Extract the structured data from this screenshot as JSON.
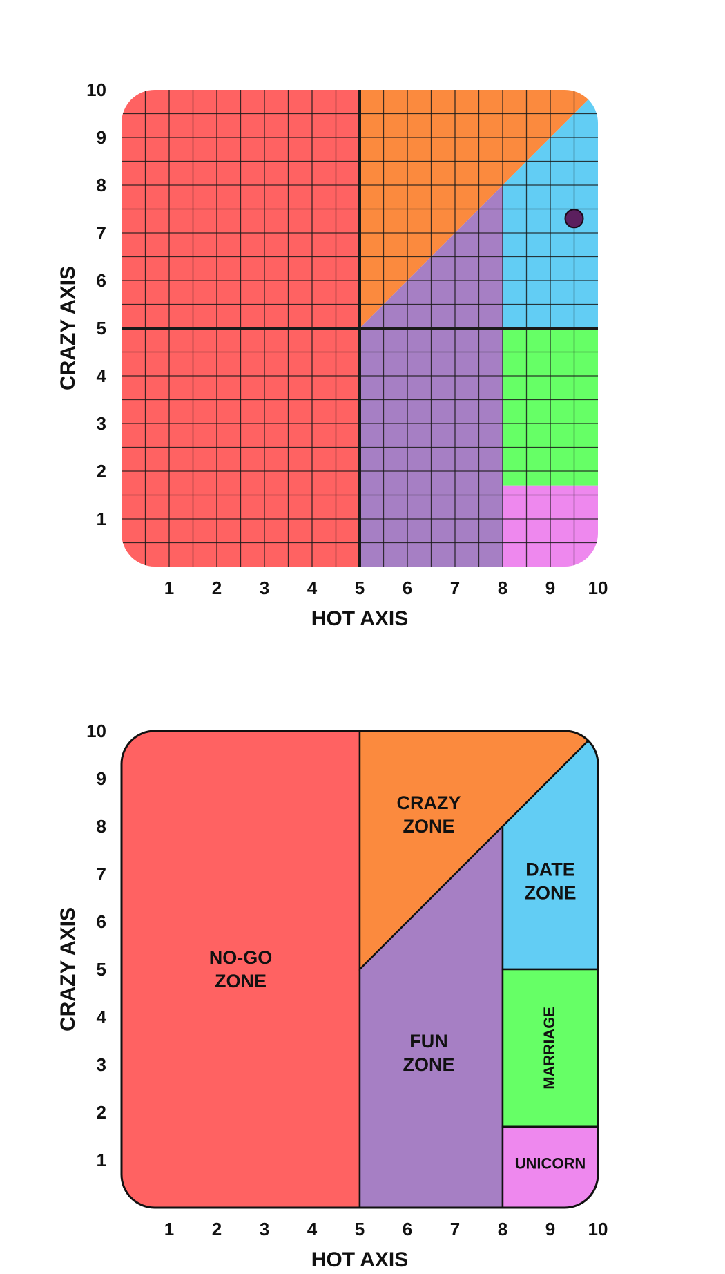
{
  "chart_data": [
    {
      "type": "area",
      "xlabel": "HOT AXIS",
      "ylabel": "CRAZY AXIS",
      "xlim": [
        0,
        10
      ],
      "ylim": [
        0,
        10
      ],
      "x_ticks": [
        "1",
        "2",
        "3",
        "4",
        "5",
        "6",
        "7",
        "8",
        "9",
        "10"
      ],
      "y_ticks": [
        "1",
        "2",
        "3",
        "4",
        "5",
        "6",
        "7",
        "8",
        "9",
        "10"
      ],
      "grid": true,
      "minor_grid_step": 0.5,
      "major_lines": {
        "x": 5,
        "y": 5
      },
      "point": {
        "x": 9.5,
        "y": 7.3,
        "color": "#5b1f5e"
      },
      "zones": [
        {
          "id": "no-go",
          "color": "#ff6262",
          "polygon": [
            [
              0,
              0
            ],
            [
              5,
              0
            ],
            [
              5,
              10
            ],
            [
              0,
              10
            ]
          ]
        },
        {
          "id": "crazy",
          "color": "#fb8a3e",
          "polygon": [
            [
              5,
              5
            ],
            [
              5,
              10
            ],
            [
              10,
              10
            ]
          ]
        },
        {
          "id": "fun",
          "color": "#a67fc4",
          "polygon": [
            [
              5,
              0
            ],
            [
              8,
              0
            ],
            [
              8,
              8
            ],
            [
              5,
              5
            ]
          ]
        },
        {
          "id": "date",
          "color": "#62cdf4",
          "polygon": [
            [
              8,
              5
            ],
            [
              10,
              5
            ],
            [
              10,
              10
            ],
            [
              8,
              8
            ]
          ]
        },
        {
          "id": "marriage",
          "color": "#66ff66",
          "polygon": [
            [
              8,
              1.7
            ],
            [
              10,
              1.7
            ],
            [
              10,
              5
            ],
            [
              8,
              5
            ]
          ]
        },
        {
          "id": "unicorn",
          "color": "#ee88ee",
          "polygon": [
            [
              8,
              0
            ],
            [
              10,
              0
            ],
            [
              10,
              1.7
            ],
            [
              8,
              1.7
            ]
          ]
        }
      ]
    },
    {
      "type": "area",
      "xlabel": "HOT AXIS",
      "ylabel": "CRAZY AXIS",
      "xlim": [
        0,
        10
      ],
      "ylim": [
        0,
        10
      ],
      "x_ticks": [
        "1",
        "2",
        "3",
        "4",
        "5",
        "6",
        "7",
        "8",
        "9",
        "10"
      ],
      "y_ticks": [
        "1",
        "2",
        "3",
        "4",
        "5",
        "6",
        "7",
        "8",
        "9",
        "10"
      ],
      "grid": false,
      "zones": [
        {
          "id": "no-go",
          "color": "#ff6262",
          "polygon": [
            [
              0,
              0
            ],
            [
              5,
              0
            ],
            [
              5,
              10
            ],
            [
              0,
              10
            ]
          ],
          "label": [
            "NO-GO",
            "ZONE"
          ],
          "label_at": [
            2.5,
            5
          ]
        },
        {
          "id": "crazy",
          "color": "#fb8a3e",
          "polygon": [
            [
              5,
              5
            ],
            [
              5,
              10
            ],
            [
              10,
              10
            ]
          ],
          "label": [
            "CRAZY",
            "ZONE"
          ],
          "label_at": [
            6.45,
            8.25
          ]
        },
        {
          "id": "fun",
          "color": "#a67fc4",
          "polygon": [
            [
              5,
              0
            ],
            [
              8,
              0
            ],
            [
              8,
              8
            ],
            [
              5,
              5
            ]
          ],
          "label": [
            "FUN",
            "ZONE"
          ],
          "label_at": [
            6.45,
            3.25
          ]
        },
        {
          "id": "date",
          "color": "#62cdf4",
          "polygon": [
            [
              8,
              5
            ],
            [
              10,
              5
            ],
            [
              10,
              10
            ],
            [
              8,
              8
            ]
          ],
          "label": [
            "DATE",
            "ZONE"
          ],
          "label_at": [
            9,
            6.85
          ]
        },
        {
          "id": "marriage",
          "color": "#66ff66",
          "polygon": [
            [
              8,
              1.7
            ],
            [
              10,
              1.7
            ],
            [
              10,
              5
            ],
            [
              8,
              5
            ]
          ],
          "label": [
            "MARRIAGE"
          ],
          "label_at": [
            9,
            3.35
          ],
          "label_rotate": true
        },
        {
          "id": "unicorn",
          "color": "#ee88ee",
          "polygon": [
            [
              8,
              0
            ],
            [
              10,
              0
            ],
            [
              10,
              1.7
            ],
            [
              8,
              1.7
            ]
          ],
          "label": [
            "UNICORN"
          ],
          "label_at": [
            9,
            0.95
          ]
        }
      ]
    }
  ]
}
